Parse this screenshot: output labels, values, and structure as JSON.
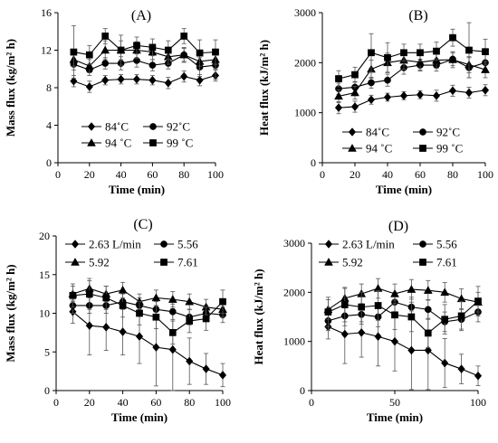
{
  "chart_data": [
    {
      "type": "line",
      "panel": "(A)",
      "xlabel": "Time (min)",
      "ylabel": "Mass flux (kg/m² h)",
      "xlim": [
        0,
        100
      ],
      "ylim": [
        0,
        16
      ],
      "xticks": [
        0,
        20,
        40,
        60,
        80,
        100
      ],
      "yticks": [
        0,
        4,
        8,
        12,
        16
      ],
      "grid": false,
      "legend_rows": [
        [
          0,
          1
        ],
        [
          2,
          3
        ]
      ],
      "series": [
        {
          "name": "84˚C",
          "marker": "diamond",
          "x": [
            10,
            20,
            30,
            40,
            50,
            60,
            70,
            80,
            90,
            100
          ],
          "y": [
            8.7,
            8.1,
            8.8,
            8.9,
            8.9,
            8.8,
            8.5,
            9.2,
            8.8,
            9.3
          ],
          "err": [
            0.6,
            0.6,
            0.5,
            0.5,
            0.5,
            0.5,
            0.6,
            0.6,
            0.6,
            0.6
          ]
        },
        {
          "name": "92˚C",
          "marker": "circle",
          "x": [
            10,
            20,
            30,
            40,
            50,
            60,
            70,
            80,
            90,
            100
          ],
          "y": [
            10.5,
            9.9,
            10.6,
            10.6,
            10.9,
            10.4,
            10.6,
            11.5,
            10.2,
            10.4
          ],
          "err": [
            0.6,
            0.6,
            0.6,
            0.7,
            0.7,
            0.6,
            0.6,
            0.7,
            1.0,
            1.5
          ]
        },
        {
          "name": "94 ˚C",
          "marker": "triangle",
          "x": [
            10,
            20,
            30,
            40,
            50,
            60,
            70,
            80,
            90,
            100
          ],
          "y": [
            11.0,
            10.3,
            12.0,
            12.0,
            12.0,
            11.8,
            11.3,
            11.5,
            10.8,
            11.0
          ],
          "err": [
            0.7,
            0.7,
            1.0,
            1.0,
            0.9,
            0.8,
            0.8,
            0.8,
            0.9,
            1.0
          ]
        },
        {
          "name": "99 ˚C",
          "marker": "square",
          "x": [
            10,
            20,
            30,
            40,
            50,
            60,
            70,
            80,
            90,
            100
          ],
          "y": [
            11.8,
            11.5,
            13.5,
            12.0,
            12.5,
            12.3,
            12.0,
            13.5,
            11.7,
            11.8
          ],
          "err": [
            2.8,
            1.0,
            0.8,
            1.6,
            0.9,
            0.9,
            1.0,
            0.8,
            1.4,
            1.3
          ]
        }
      ]
    },
    {
      "type": "line",
      "panel": "(B)",
      "xlabel": "Time (min)",
      "ylabel": "Heat flux (kJ/m² h)",
      "xlim": [
        0,
        100
      ],
      "ylim": [
        0,
        3000
      ],
      "xticks": [
        0,
        20,
        40,
        60,
        80,
        100
      ],
      "yticks": [
        0,
        1000,
        2000,
        3000
      ],
      "grid": false,
      "legend_rows": [
        [
          0,
          1
        ],
        [
          2,
          3
        ]
      ],
      "series": [
        {
          "name": "84˚C",
          "marker": "diamond",
          "x": [
            10,
            20,
            30,
            40,
            50,
            60,
            70,
            80,
            90,
            100
          ],
          "y": [
            1100,
            1120,
            1260,
            1310,
            1340,
            1360,
            1340,
            1440,
            1400,
            1450
          ],
          "err": [
            120,
            110,
            90,
            80,
            80,
            80,
            110,
            110,
            110,
            110
          ]
        },
        {
          "name": "92˚C",
          "marker": "circle",
          "x": [
            10,
            20,
            30,
            40,
            50,
            60,
            70,
            80,
            90,
            100
          ],
          "y": [
            1480,
            1510,
            1600,
            1650,
            1900,
            1950,
            1950,
            2070,
            1900,
            2000
          ],
          "err": [
            110,
            110,
            110,
            120,
            130,
            120,
            120,
            130,
            200,
            160
          ]
        },
        {
          "name": "94 ˚C",
          "marker": "triangle",
          "x": [
            10,
            20,
            30,
            40,
            50,
            60,
            70,
            80,
            90,
            100
          ],
          "y": [
            1330,
            1400,
            1870,
            2000,
            2050,
            2010,
            2050,
            2060,
            1960,
            1860
          ],
          "err": [
            130,
            130,
            180,
            190,
            180,
            160,
            160,
            160,
            160,
            160
          ]
        },
        {
          "name": "99 ˚C",
          "marker": "square",
          "x": [
            10,
            20,
            30,
            40,
            50,
            60,
            70,
            80,
            90,
            100
          ],
          "y": [
            1680,
            1760,
            2200,
            2100,
            2200,
            2200,
            2230,
            2500,
            2250,
            2220
          ],
          "err": [
            160,
            150,
            380,
            300,
            170,
            170,
            180,
            170,
            550,
            250
          ]
        }
      ]
    },
    {
      "type": "line",
      "panel": "(C)",
      "xlabel": "Time (min)",
      "ylabel": "Mass flux (kg/m² h)",
      "xlim": [
        0,
        100
      ],
      "ylim": [
        0,
        20
      ],
      "xticks": [
        0,
        20,
        40,
        60,
        80,
        100
      ],
      "yticks": [
        0,
        5,
        10,
        15,
        20
      ],
      "grid": false,
      "legend_rows": [
        [
          0,
          1
        ],
        [
          2,
          3
        ]
      ],
      "series": [
        {
          "name": "2.63 L/min",
          "marker": "diamond",
          "x": [
            10,
            20,
            30,
            40,
            50,
            60,
            70,
            80,
            90,
            100
          ],
          "y": [
            10.2,
            8.4,
            8.2,
            7.6,
            7.0,
            5.6,
            5.3,
            3.8,
            2.8,
            2.0
          ],
          "err": [
            1.5,
            3.8,
            3.0,
            3.0,
            3.5,
            5.0,
            5.3,
            3.0,
            2.0,
            1.5
          ]
        },
        {
          "name": "5.56",
          "marker": "circle",
          "x": [
            10,
            20,
            30,
            40,
            50,
            60,
            70,
            80,
            90,
            100
          ],
          "y": [
            11.0,
            11.0,
            11.0,
            11.5,
            11.0,
            10.5,
            10.2,
            9.5,
            10.0,
            9.8
          ],
          "err": [
            1.0,
            1.0,
            1.0,
            1.0,
            1.0,
            1.0,
            1.0,
            1.0,
            1.0,
            1.0
          ]
        },
        {
          "name": "5.92",
          "marker": "triangle",
          "x": [
            10,
            20,
            30,
            40,
            50,
            60,
            70,
            80,
            90,
            100
          ],
          "y": [
            12.5,
            13.2,
            12.5,
            13.0,
            11.5,
            12.0,
            11.8,
            11.5,
            10.8,
            10.5
          ],
          "err": [
            1.0,
            1.0,
            1.0,
            1.0,
            1.0,
            1.0,
            1.0,
            1.0,
            1.0,
            1.0
          ]
        },
        {
          "name": "7.61",
          "marker": "square",
          "x": [
            10,
            20,
            30,
            40,
            50,
            60,
            70,
            80,
            90,
            100
          ],
          "y": [
            12.3,
            12.5,
            12.0,
            11.0,
            10.0,
            9.5,
            7.5,
            9.0,
            9.3,
            11.5
          ],
          "err": [
            1.5,
            2.0,
            1.5,
            1.5,
            1.5,
            1.5,
            1.5,
            1.5,
            1.5,
            1.5
          ]
        }
      ]
    },
    {
      "type": "line",
      "panel": "(D)",
      "xlabel": "Time (min)",
      "ylabel": "Heat flux (kJ/m² h)",
      "xlim": [
        0,
        100
      ],
      "ylim": [
        0,
        3000
      ],
      "xticks": [
        0,
        50,
        100
      ],
      "yticks": [
        0,
        1000,
        2000,
        3000
      ],
      "grid": false,
      "legend_rows": [
        [
          0,
          1
        ],
        [
          2,
          3
        ]
      ],
      "series": [
        {
          "name": "2.63 L/min",
          "marker": "diamond",
          "x": [
            10,
            20,
            30,
            40,
            50,
            60,
            70,
            80,
            90,
            100
          ],
          "y": [
            1300,
            1150,
            1180,
            1100,
            1000,
            820,
            820,
            560,
            440,
            300
          ],
          "err": [
            250,
            600,
            500,
            600,
            600,
            800,
            800,
            500,
            300,
            200
          ]
        },
        {
          "name": "5.56",
          "marker": "circle",
          "x": [
            10,
            20,
            30,
            40,
            50,
            60,
            70,
            80,
            90,
            100
          ],
          "y": [
            1420,
            1520,
            1550,
            1500,
            1800,
            1700,
            1650,
            1400,
            1450,
            1600
          ],
          "err": [
            200,
            200,
            200,
            200,
            200,
            200,
            200,
            200,
            200,
            200
          ]
        },
        {
          "name": "5.92",
          "marker": "triangle",
          "x": [
            10,
            20,
            30,
            40,
            50,
            60,
            70,
            80,
            90,
            100
          ],
          "y": [
            1650,
            1880,
            1970,
            2080,
            1970,
            2060,
            2040,
            2000,
            1870,
            1800
          ],
          "err": [
            200,
            200,
            200,
            200,
            200,
            200,
            200,
            200,
            200,
            200
          ]
        },
        {
          "name": "7.61",
          "marker": "square",
          "x": [
            10,
            20,
            30,
            40,
            50,
            60,
            70,
            80,
            90,
            100
          ],
          "y": [
            1600,
            1750,
            1700,
            1730,
            1540,
            1500,
            1170,
            1450,
            1520,
            1820
          ],
          "err": [
            300,
            350,
            300,
            300,
            300,
            300,
            300,
            300,
            300,
            300
          ]
        }
      ]
    }
  ]
}
